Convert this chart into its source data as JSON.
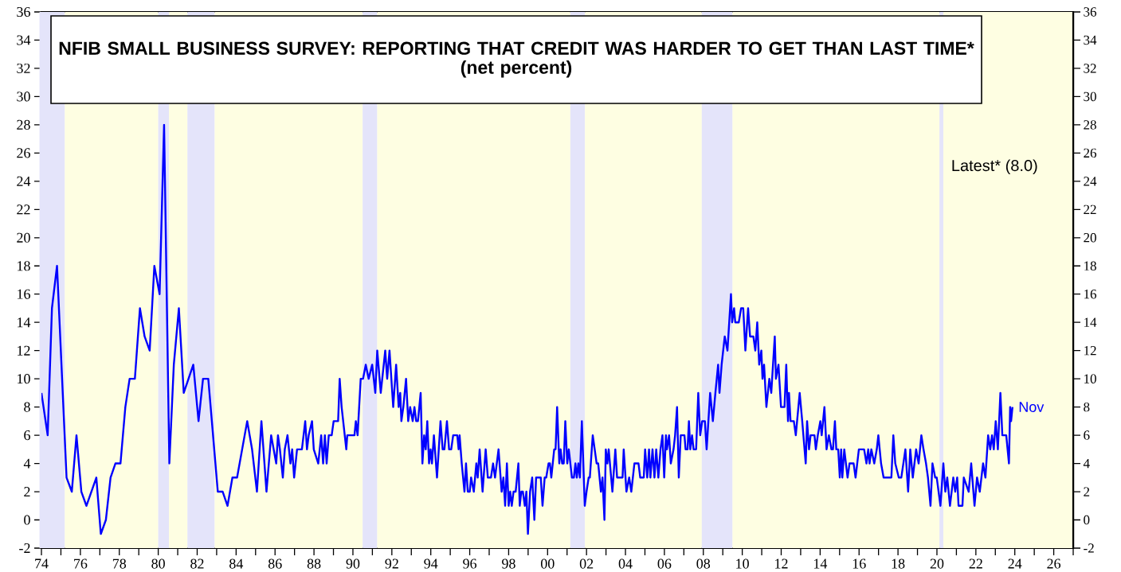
{
  "chart_data": {
    "type": "line",
    "title": "NFIB SMALL BUSINESS SURVEY: REPORTING THAT CREDIT WAS HARDER TO GET THAN LAST TIME*",
    "subtitle": "(net percent)",
    "annotations": [
      "Latest* (8.0)",
      {
        "text": "Nov",
        "x": 2023.88,
        "y": 8
      }
    ],
    "color": "#0000ff",
    "x": [
      1974.0,
      1974.32,
      1974.54,
      1974.8,
      1975.29,
      1975.56,
      1975.8,
      1976.05,
      1976.31,
      1976.82,
      1977.05,
      1977.31,
      1977.55,
      1977.8,
      1978.06,
      1978.31,
      1978.53,
      1978.8,
      1979.06,
      1979.3,
      1979.56,
      1979.8,
      1980.07,
      1980.3,
      1980.57,
      1980.8,
      1981.06,
      1981.31,
      1981.8,
      1982.07,
      1982.3,
      1982.57,
      1983.06,
      1983.31,
      1983.56,
      1983.81,
      1984.05,
      1984.57,
      1984.82,
      1985.07,
      1985.3,
      1985.56,
      1985.8,
      1986.06,
      1986.15,
      1986.25,
      1986.4,
      1986.5,
      1986.64,
      1986.79,
      1986.88,
      1986.98,
      1987.13,
      1987.38,
      1987.55,
      1987.64,
      1987.73,
      1987.9,
      1987.99,
      1988.22,
      1988.37,
      1988.47,
      1988.56,
      1988.65,
      1988.76,
      1988.91,
      1989.01,
      1989.24,
      1989.32,
      1989.42,
      1989.66,
      1989.71,
      1990.08,
      1990.15,
      1990.24,
      1990.4,
      1990.52,
      1990.66,
      1990.81,
      1990.99,
      1991.15,
      1991.25,
      1991.43,
      1991.66,
      1991.76,
      1991.88,
      1992.07,
      1992.22,
      1992.35,
      1992.43,
      1992.49,
      1992.59,
      1992.73,
      1992.84,
      1992.94,
      1993.07,
      1993.16,
      1993.25,
      1993.34,
      1993.48,
      1993.57,
      1993.66,
      1993.74,
      1993.82,
      1993.91,
      1993.99,
      1994.06,
      1994.16,
      1994.32,
      1994.5,
      1994.61,
      1994.7,
      1994.83,
      1994.94,
      1995.05,
      1995.15,
      1995.36,
      1995.43,
      1995.48,
      1995.59,
      1995.73,
      1995.81,
      1995.9,
      1996.0,
      1996.07,
      1996.21,
      1996.34,
      1996.41,
      1996.51,
      1996.66,
      1996.82,
      1996.93,
      1997.09,
      1997.2,
      1997.3,
      1997.39,
      1997.48,
      1997.64,
      1997.73,
      1997.82,
      1997.91,
      1998.0,
      1998.08,
      1998.16,
      1998.25,
      1998.36,
      1998.5,
      1998.57,
      1998.65,
      1998.73,
      1998.83,
      1998.91,
      1998.99,
      1999.1,
      1999.21,
      1999.32,
      1999.41,
      1999.65,
      1999.74,
      1999.85,
      1999.93,
      2000.05,
      2000.12,
      2000.19,
      2000.34,
      2000.41,
      2000.49,
      2000.6,
      2000.67,
      2000.75,
      2000.83,
      2000.91,
      2001.01,
      2001.09,
      2001.25,
      2001.35,
      2001.43,
      2001.5,
      2001.58,
      2001.66,
      2001.76,
      2001.91,
      2002.0,
      2002.11,
      2002.17,
      2002.32,
      2002.42,
      2002.52,
      2002.6,
      2002.74,
      2002.82,
      2002.92,
      2002.99,
      2003.07,
      2003.14,
      2003.33,
      2003.48,
      2003.57,
      2003.85,
      2003.91,
      2004.05,
      2004.19,
      2004.3,
      2004.46,
      2004.67,
      2004.76,
      2004.94,
      2005.01,
      2005.12,
      2005.21,
      2005.28,
      2005.39,
      2005.49,
      2005.58,
      2005.69,
      2005.8,
      2005.9,
      2005.99,
      2006.08,
      2006.13,
      2006.24,
      2006.33,
      2006.47,
      2006.55,
      2006.65,
      2006.74,
      2006.84,
      2007.03,
      2007.09,
      2007.19,
      2007.26,
      2007.33,
      2007.42,
      2007.5,
      2007.63,
      2007.74,
      2007.84,
      2007.94,
      2008.08,
      2008.17,
      2008.35,
      2008.49,
      2008.62,
      2008.76,
      2008.83,
      2008.94,
      2009.1,
      2009.24,
      2009.42,
      2009.48,
      2009.58,
      2009.64,
      2009.82,
      2009.94,
      2010.05,
      2010.16,
      2010.3,
      2010.4,
      2010.57,
      2010.67,
      2010.77,
      2010.87,
      2010.98,
      2011.04,
      2011.12,
      2011.24,
      2011.39,
      2011.49,
      2011.67,
      2011.73,
      2011.86,
      2011.99,
      2012.17,
      2012.26,
      2012.35,
      2012.4,
      2012.48,
      2012.65,
      2012.75,
      2012.95,
      2013.08,
      2013.26,
      2013.33,
      2013.43,
      2013.51,
      2013.71,
      2013.78,
      2013.88,
      2014.01,
      2014.08,
      2014.22,
      2014.33,
      2014.45,
      2014.58,
      2014.66,
      2014.76,
      2014.83,
      2014.93,
      2015.01,
      2015.08,
      2015.14,
      2015.24,
      2015.41,
      2015.51,
      2015.72,
      2015.82,
      2015.99,
      2016.26,
      2016.38,
      2016.47,
      2016.54,
      2016.63,
      2016.78,
      2016.91,
      2016.99,
      2017.13,
      2017.26,
      2017.49,
      2017.66,
      2017.76,
      2017.86,
      2018.04,
      2018.17,
      2018.38,
      2018.52,
      2018.63,
      2018.76,
      2018.93,
      2019.06,
      2019.2,
      2019.31,
      2019.44,
      2019.54,
      2019.67,
      2019.77,
      2019.91,
      2019.99,
      2020.18,
      2020.33,
      2020.43,
      2020.53,
      2020.67,
      2020.84,
      2020.94,
      2021.04,
      2021.11,
      2021.31,
      2021.38,
      2021.63,
      2021.76,
      2021.93,
      2022.06,
      2022.2,
      2022.37,
      2022.49,
      2022.63,
      2022.74,
      2022.83,
      2022.92,
      2023.02,
      2023.13,
      2023.26,
      2023.36,
      2023.56,
      2023.7,
      2023.76,
      2023.81,
      2023.88
    ],
    "values": [
      9,
      6,
      15,
      18,
      3,
      2,
      6,
      2,
      1,
      3,
      -1,
      0,
      3,
      4,
      4,
      8,
      10,
      10,
      15,
      13,
      12,
      18,
      16,
      28,
      4,
      11,
      15,
      9,
      11,
      7,
      10,
      10,
      2,
      2,
      1,
      3,
      3,
      7,
      5,
      2,
      7,
      2,
      6,
      4,
      6,
      5,
      3,
      5,
      6,
      4,
      5,
      3,
      5,
      5,
      7,
      5,
      6,
      7,
      5,
      4,
      6,
      4,
      6,
      4,
      6,
      6,
      7,
      7,
      10,
      8,
      5,
      6,
      6,
      7,
      6,
      10,
      10,
      11,
      10,
      11,
      9,
      12,
      9,
      12,
      10,
      12,
      8,
      11,
      8,
      9,
      7,
      8,
      10,
      7,
      8,
      7,
      8,
      7,
      7,
      9,
      4,
      6,
      5,
      7,
      4,
      5,
      4,
      6,
      3,
      7,
      5,
      5,
      7,
      5,
      5,
      6,
      6,
      5,
      6,
      4,
      2,
      4,
      2,
      2,
      3,
      2,
      4,
      3,
      5,
      2,
      5,
      3,
      3,
      4,
      3,
      4,
      5,
      2,
      3,
      1,
      4,
      1,
      2,
      1,
      2,
      2,
      4,
      1,
      2,
      2,
      1,
      2,
      -1,
      2,
      3,
      0,
      3,
      3,
      1,
      3,
      3,
      4,
      4,
      3,
      5,
      5,
      8,
      4,
      5,
      4,
      4,
      7,
      4,
      5,
      3,
      3,
      4,
      3,
      4,
      3,
      7,
      1,
      2,
      3,
      3,
      6,
      5,
      4,
      4,
      2,
      3,
      0,
      5,
      4,
      5,
      2,
      5,
      3,
      3,
      5,
      2,
      3,
      2,
      4,
      4,
      3,
      3,
      5,
      3,
      5,
      3,
      5,
      3,
      5,
      3,
      5,
      6,
      3,
      6,
      5,
      6,
      4,
      5,
      6,
      8,
      3,
      6,
      6,
      5,
      5,
      7,
      5,
      6,
      5,
      5,
      9,
      6,
      7,
      7,
      5,
      9,
      7,
      9,
      11,
      9,
      11,
      13,
      12,
      16,
      14,
      15,
      14,
      14,
      15,
      15,
      12,
      15,
      13,
      13,
      12,
      14,
      11,
      12,
      10,
      11,
      8,
      10,
      9,
      13,
      10,
      11,
      8,
      8,
      11,
      7,
      9,
      7,
      7,
      6,
      9,
      7,
      4,
      7,
      5,
      6,
      6,
      5,
      6,
      7,
      6,
      8,
      5,
      6,
      5,
      5,
      7,
      5,
      5,
      3,
      5,
      3,
      5,
      3,
      4,
      4,
      3,
      5,
      5,
      4,
      5,
      4,
      5,
      4,
      5,
      6,
      4,
      3,
      3,
      3,
      6,
      4,
      3,
      3,
      5,
      2,
      5,
      3,
      5,
      4,
      6,
      5,
      4,
      3,
      1,
      4,
      3,
      3,
      1,
      4,
      2,
      3,
      1,
      3,
      2,
      3,
      1,
      1,
      3,
      2,
      4,
      1,
      3,
      2,
      4,
      3,
      6,
      5,
      6,
      5,
      7,
      5,
      9,
      6,
      6,
      4,
      8,
      7,
      8
    ],
    "xlim": [
      1974,
      2027
    ],
    "ylim": [
      -2,
      36
    ],
    "yticks": [
      -2,
      0,
      2,
      4,
      6,
      8,
      10,
      12,
      14,
      16,
      18,
      20,
      22,
      24,
      26,
      28,
      30,
      32,
      34,
      36
    ],
    "y2lim": [
      -2,
      36
    ],
    "y2ticks": [
      -2,
      0,
      2,
      4,
      6,
      8,
      10,
      12,
      14,
      16,
      18,
      20,
      22,
      24,
      26,
      28,
      30,
      32,
      34,
      36
    ],
    "xticks": [
      {
        "value": 1974,
        "label": "74"
      },
      {
        "value": 1976,
        "label": "76"
      },
      {
        "value": 1978,
        "label": "78"
      },
      {
        "value": 1980,
        "label": "80"
      },
      {
        "value": 1982,
        "label": "82"
      },
      {
        "value": 1984,
        "label": "84"
      },
      {
        "value": 1986,
        "label": "86"
      },
      {
        "value": 1988,
        "label": "88"
      },
      {
        "value": 1990,
        "label": "90"
      },
      {
        "value": 1992,
        "label": "92"
      },
      {
        "value": 1994,
        "label": "94"
      },
      {
        "value": 1996,
        "label": "96"
      },
      {
        "value": 1998,
        "label": "98"
      },
      {
        "value": 2000,
        "label": "00"
      },
      {
        "value": 2002,
        "label": "02"
      },
      {
        "value": 2004,
        "label": "04"
      },
      {
        "value": 2006,
        "label": "06"
      },
      {
        "value": 2008,
        "label": "08"
      },
      {
        "value": 2010,
        "label": "10"
      },
      {
        "value": 2012,
        "label": "12"
      },
      {
        "value": 2014,
        "label": "14"
      },
      {
        "value": 2016,
        "label": "16"
      },
      {
        "value": 2018,
        "label": "18"
      },
      {
        "value": 2020,
        "label": "20"
      },
      {
        "value": 2022,
        "label": "22"
      },
      {
        "value": 2024,
        "label": "24"
      },
      {
        "value": 2026,
        "label": "26"
      },
      {
        "value": 1975,
        "label": null
      },
      {
        "value": 1977,
        "label": null
      },
      {
        "value": 1979,
        "label": null
      },
      {
        "value": 1981,
        "label": null
      },
      {
        "value": 1983,
        "label": null
      },
      {
        "value": 1985,
        "label": null
      },
      {
        "value": 1987,
        "label": null
      },
      {
        "value": 1989,
        "label": null
      },
      {
        "value": 1991,
        "label": null
      },
      {
        "value": 1993,
        "label": null
      },
      {
        "value": 1995,
        "label": null
      },
      {
        "value": 1997,
        "label": null
      },
      {
        "value": 1999,
        "label": null
      },
      {
        "value": 2001,
        "label": null
      },
      {
        "value": 2003,
        "label": null
      },
      {
        "value": 2005,
        "label": null
      },
      {
        "value": 2007,
        "label": null
      },
      {
        "value": 2009,
        "label": null
      },
      {
        "value": 2011,
        "label": null
      },
      {
        "value": 2013,
        "label": null
      },
      {
        "value": 2015,
        "label": null
      },
      {
        "value": 2017,
        "label": null
      },
      {
        "value": 2019,
        "label": null
      },
      {
        "value": 2021,
        "label": null
      },
      {
        "value": 2023,
        "label": null
      },
      {
        "value": 2025,
        "label": null
      },
      {
        "value": 2027,
        "label": null
      }
    ],
    "bands": [
      {
        "axis": "x",
        "from": 1973.9,
        "to": 1975.2,
        "color": "#e4e4fa"
      },
      {
        "axis": "x",
        "from": 1975.2,
        "to": 1980.0,
        "color": "#fefee2"
      },
      {
        "axis": "x",
        "from": 1980.0,
        "to": 1980.55,
        "color": "#e4e4fa"
      },
      {
        "axis": "x",
        "from": 1980.55,
        "to": 1981.5,
        "color": "#fefee2"
      },
      {
        "axis": "x",
        "from": 1981.5,
        "to": 1982.9,
        "color": "#e4e4fa"
      },
      {
        "axis": "x",
        "from": 1982.9,
        "to": 1990.5,
        "color": "#fefee2"
      },
      {
        "axis": "x",
        "from": 1990.5,
        "to": 1991.25,
        "color": "#e4e4fa"
      },
      {
        "axis": "x",
        "from": 1991.25,
        "to": 2001.17,
        "color": "#fefee2"
      },
      {
        "axis": "x",
        "from": 2001.17,
        "to": 2001.92,
        "color": "#e4e4fa"
      },
      {
        "axis": "x",
        "from": 2001.92,
        "to": 2007.92,
        "color": "#fefee2"
      },
      {
        "axis": "x",
        "from": 2007.92,
        "to": 2009.5,
        "color": "#e4e4fa"
      },
      {
        "axis": "x",
        "from": 2009.5,
        "to": 2020.13,
        "color": "#fefee2"
      },
      {
        "axis": "x",
        "from": 2020.13,
        "to": 2020.33,
        "color": "#e4e4fa"
      },
      {
        "axis": "x",
        "from": 2020.33,
        "to": 2027,
        "color": "#fefee2"
      }
    ]
  }
}
